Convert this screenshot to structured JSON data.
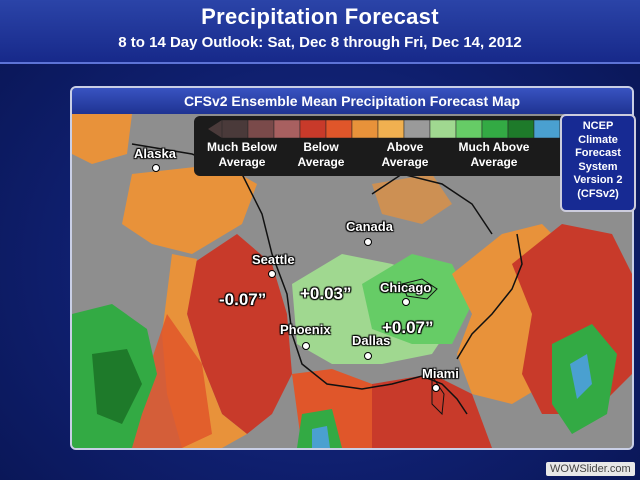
{
  "header": {
    "title": "Precipitation Forecast",
    "subtitle": "8 to 14 Day Outlook: Sat, Dec 8 through Fri, Dec 14, 2012"
  },
  "map": {
    "title": "CFSv2 Ensemble Mean Precipitation Forecast Map",
    "legend": {
      "labels": [
        "Much Below Average",
        "Below Average",
        "Above Average",
        "Much Above Average"
      ],
      "colors": [
        "#4a3a3a",
        "#7a4a4a",
        "#a86060",
        "#c83a2a",
        "#e0562a",
        "#e8923a",
        "#f0b050",
        "#9a9a9a",
        "#a0d890",
        "#66cc66",
        "#33aa44",
        "#1e7a2a",
        "#4aa0d0",
        "#2a6ab8"
      ]
    },
    "ncep_box": {
      "lines": [
        "NCEP",
        "Climate",
        "Forecast",
        "System",
        "Version 2",
        "(CFSv2)"
      ]
    },
    "cities": [
      "Alaska",
      "Canada",
      "Seattle",
      "Chicago",
      "Phoenix",
      "Dallas",
      "Miami"
    ],
    "values": [
      "-0.07”",
      "+0.03”",
      "+0.07”"
    ]
  },
  "watermark": "WOWSlider.com"
}
